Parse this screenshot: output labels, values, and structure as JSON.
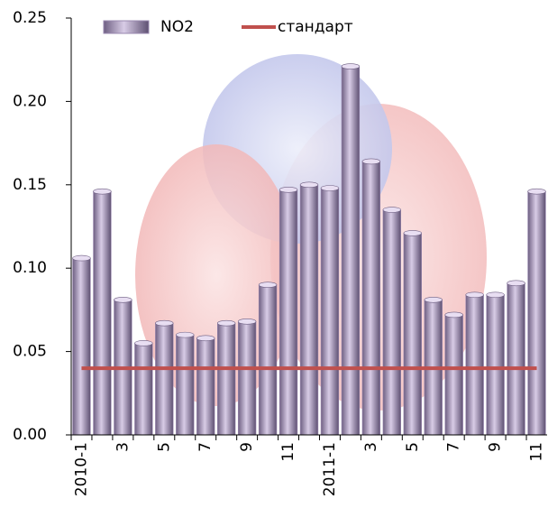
{
  "chart_data": {
    "type": "bar",
    "categories": [
      "2010-1",
      null,
      "3",
      null,
      "5",
      null,
      "7",
      null,
      "9",
      null,
      "11",
      null,
      "2011-1",
      null,
      "3",
      null,
      "5",
      null,
      "7",
      null,
      "9",
      null,
      "11"
    ],
    "series": [
      {
        "name": "NO2",
        "color": "#9a88b0",
        "values": [
          0.106,
          0.146,
          0.081,
          0.055,
          0.067,
          0.06,
          0.058,
          0.067,
          0.068,
          0.09,
          0.147,
          0.15,
          0.148,
          0.221,
          0.164,
          0.135,
          0.121,
          0.081,
          0.072,
          0.084,
          0.084,
          0.091,
          0.146
        ]
      },
      {
        "name": "стандарт",
        "type": "line",
        "color": "#c0504d",
        "values": [
          0.04,
          0.04,
          0.04,
          0.04,
          0.04,
          0.04,
          0.04,
          0.04,
          0.04,
          0.04,
          0.04,
          0.04,
          0.04,
          0.04,
          0.04,
          0.04,
          0.04,
          0.04,
          0.04,
          0.04,
          0.04,
          0.04,
          0.04
        ]
      }
    ],
    "ylim": [
      0,
      0.25
    ],
    "yticks": [
      {
        "value": 0,
        "label": "0.00"
      },
      {
        "value": 0.05,
        "label": "0.05"
      },
      {
        "value": 0.1,
        "label": "0.10"
      },
      {
        "value": 0.15,
        "label": "0.15"
      },
      {
        "value": 0.2,
        "label": "0.20"
      },
      0.25
    ],
    "legend": "top"
  }
}
